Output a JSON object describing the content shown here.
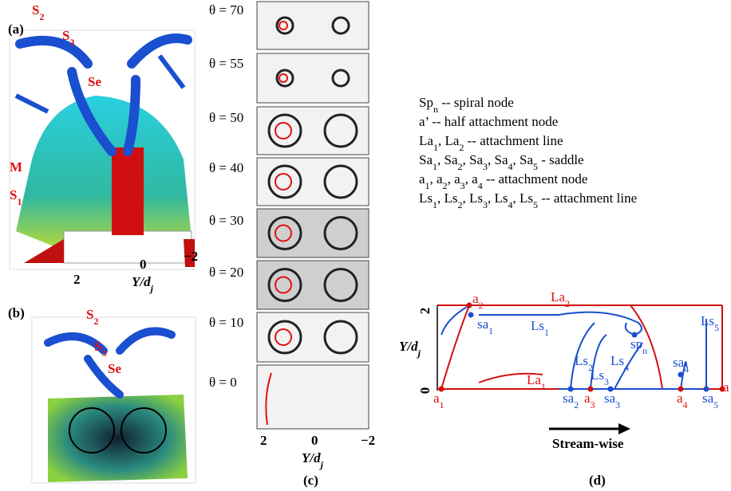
{
  "panel_a": {
    "label": "(a)",
    "labels": [
      {
        "base": "S",
        "sub": "2"
      },
      {
        "base": "S",
        "sub": "3"
      },
      {
        "base": "Se"
      },
      {
        "base": "M"
      },
      {
        "base": "S",
        "sub": "1"
      }
    ],
    "ticks": [
      "2",
      "0",
      "−2"
    ],
    "axis_label": {
      "base": "Y/d",
      "sub": "j"
    }
  },
  "panel_b": {
    "label": "(b)",
    "labels": [
      {
        "base": "S",
        "sub": "2"
      },
      {
        "base": "S",
        "sub": "3"
      },
      {
        "base": "Se"
      }
    ]
  },
  "panel_c": {
    "label": "(c)",
    "angles": [
      "θ = 70",
      "θ = 55",
      "θ = 50",
      "θ = 40",
      "θ = 30",
      "θ = 20",
      "θ = 10",
      "θ = 0"
    ],
    "ticks": [
      "2",
      "0",
      "−2"
    ],
    "axis_label": {
      "base": "Y/d",
      "sub": "j"
    }
  },
  "legend": [
    [
      "Sp",
      "n",
      " -- spiral node"
    ],
    [
      "a’ -- half attachment node"
    ],
    [
      "La",
      "1",
      ", La",
      "2",
      " -- attachment line"
    ],
    [
      "Sa",
      "1",
      ", Sa",
      "2",
      ", Sa",
      "3",
      ", Sa",
      "4",
      ", Sa",
      "5",
      " - saddle"
    ],
    [
      "a",
      "1",
      ", a",
      "2",
      ", a",
      "3",
      ", a",
      "4",
      " -- attachment node"
    ],
    [
      "Ls",
      "1",
      ", Ls",
      "2",
      ", Ls",
      "3",
      ", Ls",
      "4",
      ", Ls",
      "5",
      " -- attachment line"
    ]
  ],
  "panel_d": {
    "label": "(d)",
    "yticks": [
      "2",
      "0"
    ],
    "axis_label": {
      "base": "Y/d",
      "sub": "j"
    },
    "nodes": [
      {
        "base": "a",
        "sub": "2"
      },
      {
        "base": "La",
        "sub": "2"
      },
      {
        "base": "sa",
        "sub": "1"
      },
      {
        "base": "Ls",
        "sub": "1"
      },
      {
        "base": "sp",
        "sub": "n"
      },
      {
        "base": "Ls",
        "sub": "5"
      },
      {
        "base": "Ls",
        "sub": "2"
      },
      {
        "base": "Ls",
        "sub": "4"
      },
      {
        "base": "Ls",
        "sub": "3"
      },
      {
        "base": "sa",
        "sub": "4"
      },
      {
        "base": "La",
        "sub": "1"
      },
      {
        "base": "a",
        "sub": "1"
      },
      {
        "base": "sa",
        "sub": "2"
      },
      {
        "base": "a",
        "sub": "3"
      },
      {
        "base": "sa",
        "sub": "3"
      },
      {
        "base": "a",
        "sub": "4"
      },
      {
        "base": "sa",
        "sub": "5"
      },
      {
        "base": "a"
      }
    ],
    "direction": "Stream-wise"
  }
}
